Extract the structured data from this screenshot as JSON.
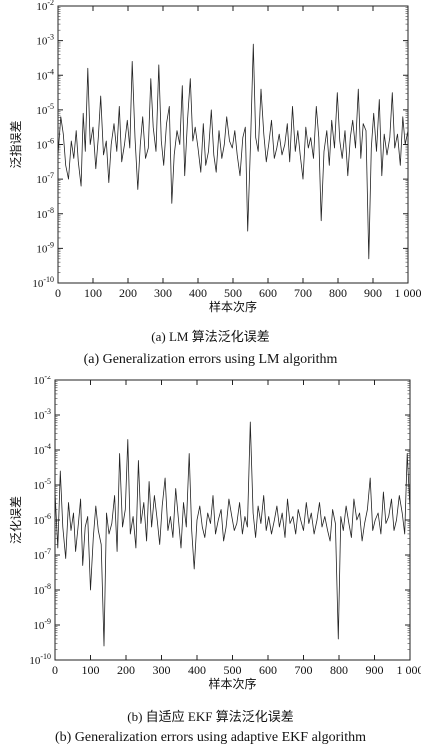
{
  "chart_data": [
    {
      "type": "line",
      "panel": "a",
      "xlabel": "样本次序",
      "ylabel": "泛指误差",
      "xlim": [
        0,
        1000
      ],
      "ylim_log10": [
        -10,
        -2
      ],
      "y_scale": "log",
      "x_ticks": [
        "0",
        "100",
        "200",
        "300",
        "400",
        "500",
        "600",
        "700",
        "800",
        "900",
        "1 000"
      ],
      "y_ticks": [
        {
          "base": "10",
          "exp": "-2"
        },
        {
          "base": "10",
          "exp": "-3"
        },
        {
          "base": "10",
          "exp": "-4"
        },
        {
          "base": "10",
          "exp": "-5"
        },
        {
          "base": "10",
          "exp": "-6"
        },
        {
          "base": "10",
          "exp": "-7"
        },
        {
          "base": "10",
          "exp": "-8"
        },
        {
          "base": "10",
          "exp": "-9"
        },
        {
          "base": "10",
          "exp": "-10"
        }
      ],
      "grid": false,
      "series": [
        {
          "color": "#222222",
          "x": [
            0,
            8,
            15,
            22,
            30,
            38,
            45,
            52,
            58,
            66,
            72,
            78,
            85,
            92,
            100,
            108,
            115,
            122,
            130,
            138,
            145,
            152,
            160,
            168,
            175,
            182,
            190,
            198,
            205,
            212,
            220,
            228,
            235,
            242,
            250,
            258,
            265,
            272,
            280,
            288,
            295,
            302,
            310,
            318,
            325,
            332,
            340,
            348,
            355,
            362,
            370,
            378,
            385,
            392,
            400,
            408,
            415,
            422,
            430,
            438,
            445,
            452,
            460,
            468,
            475,
            482,
            490,
            498,
            505,
            512,
            520,
            528,
            535,
            542,
            550,
            558,
            565,
            572,
            580,
            588,
            595,
            602,
            610,
            618,
            625,
            632,
            640,
            648,
            655,
            662,
            670,
            678,
            685,
            692,
            700,
            708,
            715,
            722,
            730,
            738,
            745,
            752,
            760,
            768,
            775,
            782,
            790,
            798,
            805,
            812,
            820,
            828,
            835,
            842,
            850,
            858,
            865,
            872,
            880,
            888,
            895,
            902,
            910,
            918,
            925,
            932,
            940,
            948,
            955,
            962,
            970,
            978,
            985,
            992,
            1000
          ],
          "y_log10": [
            -6.3,
            -5.2,
            -5.7,
            -6.6,
            -7.0,
            -5.9,
            -6.4,
            -5.6,
            -6.5,
            -7.2,
            -5.1,
            -6.2,
            -3.8,
            -6.0,
            -5.5,
            -6.7,
            -5.8,
            -4.6,
            -6.3,
            -5.9,
            -7.1,
            -6.0,
            -5.4,
            -6.2,
            -4.9,
            -6.5,
            -6.0,
            -5.3,
            -6.1,
            -3.6,
            -5.8,
            -7.3,
            -6.0,
            -5.2,
            -6.4,
            -6.1,
            -4.1,
            -5.5,
            -6.2,
            -3.7,
            -5.9,
            -6.6,
            -5.4,
            -4.9,
            -7.7,
            -6.3,
            -5.6,
            -6.0,
            -4.3,
            -6.9,
            -5.3,
            -4.1,
            -5.9,
            -5.5,
            -6.1,
            -6.8,
            -5.4,
            -6.6,
            -6.2,
            -5.0,
            -6.3,
            -6.8,
            -5.6,
            -6.4,
            -6.0,
            -5.2,
            -5.9,
            -6.1,
            -5.6,
            -6.3,
            -6.9,
            -5.8,
            -5.5,
            -8.5,
            -6.0,
            -3.1,
            -5.8,
            -6.2,
            -4.4,
            -5.7,
            -6.5,
            -6.0,
            -5.3,
            -6.4,
            -6.1,
            -5.7,
            -6.3,
            -6.0,
            -5.4,
            -6.5,
            -4.9,
            -6.2,
            -5.6,
            -6.3,
            -7.0,
            -5.5,
            -6.1,
            -5.8,
            -6.4,
            -4.9,
            -5.8,
            -8.2,
            -6.2,
            -5.6,
            -6.6,
            -5.3,
            -6.1,
            -4.5,
            -5.9,
            -6.4,
            -5.6,
            -6.9,
            -5.8,
            -5.3,
            -6.1,
            -4.4,
            -6.4,
            -5.4,
            -5.6,
            -9.3,
            -6.1,
            -5.1,
            -6.2,
            -4.7,
            -6.9,
            -5.7,
            -6.3,
            -5.8,
            -4.5,
            -6.1,
            -5.7,
            -6.6,
            -5.2,
            -6.0,
            -5.6
          ]
        }
      ]
    },
    {
      "type": "line",
      "panel": "b",
      "xlabel": "样本次序",
      "ylabel": "泛化误差",
      "xlim": [
        0,
        1000
      ],
      "ylim_log10": [
        -10,
        -2
      ],
      "y_scale": "log",
      "x_ticks": [
        "0",
        "100",
        "200",
        "300",
        "400",
        "500",
        "600",
        "700",
        "800",
        "900",
        "1 000"
      ],
      "y_ticks": [
        {
          "base": "10",
          "exp": "-2"
        },
        {
          "base": "10",
          "exp": "-3"
        },
        {
          "base": "10",
          "exp": "-4"
        },
        {
          "base": "10",
          "exp": "-5"
        },
        {
          "base": "10",
          "exp": "-6"
        },
        {
          "base": "10",
          "exp": "-7"
        },
        {
          "base": "10",
          "exp": "-8"
        },
        {
          "base": "10",
          "exp": "-9"
        },
        {
          "base": "10",
          "exp": "-10"
        }
      ],
      "grid": false,
      "series": [
        {
          "color": "#222222",
          "x": [
            0,
            8,
            15,
            22,
            30,
            38,
            45,
            52,
            58,
            66,
            72,
            78,
            85,
            92,
            100,
            108,
            115,
            122,
            130,
            138,
            145,
            152,
            160,
            168,
            175,
            182,
            190,
            198,
            205,
            212,
            220,
            228,
            235,
            242,
            250,
            258,
            265,
            272,
            280,
            288,
            295,
            302,
            310,
            318,
            325,
            332,
            340,
            348,
            355,
            362,
            370,
            378,
            385,
            392,
            400,
            408,
            415,
            422,
            430,
            438,
            445,
            452,
            460,
            468,
            475,
            482,
            490,
            498,
            505,
            512,
            520,
            528,
            535,
            542,
            550,
            558,
            565,
            572,
            580,
            588,
            595,
            602,
            610,
            618,
            625,
            632,
            640,
            648,
            655,
            662,
            670,
            678,
            685,
            692,
            700,
            708,
            715,
            722,
            730,
            738,
            745,
            752,
            760,
            768,
            775,
            782,
            790,
            798,
            805,
            812,
            820,
            828,
            835,
            842,
            850,
            858,
            865,
            872,
            880,
            888,
            895,
            902,
            910,
            918,
            925,
            932,
            940,
            948,
            955,
            962,
            970,
            978,
            985,
            992,
            1000
          ],
          "y_log10": [
            -5.2,
            -6.8,
            -4.6,
            -6.2,
            -7.1,
            -5.5,
            -6.3,
            -5.8,
            -6.9,
            -6.1,
            -5.4,
            -7.3,
            -6.2,
            -5.9,
            -8.0,
            -6.5,
            -5.6,
            -6.3,
            -6.7,
            -9.6,
            -5.8,
            -6.4,
            -6.1,
            -5.3,
            -6.9,
            -4.1,
            -6.2,
            -5.7,
            -3.7,
            -6.4,
            -5.9,
            -6.8,
            -4.3,
            -6.1,
            -5.5,
            -6.6,
            -4.9,
            -6.2,
            -5.3,
            -6.0,
            -6.7,
            -5.6,
            -4.8,
            -6.3,
            -5.9,
            -6.5,
            -5.1,
            -6.0,
            -6.8,
            -5.5,
            -6.2,
            -4.1,
            -6.3,
            -7.4,
            -6.0,
            -5.6,
            -6.2,
            -6.5,
            -5.8,
            -6.1,
            -5.3,
            -6.4,
            -6.0,
            -5.7,
            -6.6,
            -6.2,
            -5.4,
            -5.9,
            -6.3,
            -6.1,
            -5.5,
            -6.4,
            -5.9,
            -6.2,
            -3.2,
            -5.8,
            -6.5,
            -5.6,
            -6.1,
            -5.3,
            -6.3,
            -5.9,
            -6.4,
            -6.0,
            -5.6,
            -6.2,
            -5.8,
            -6.5,
            -5.4,
            -6.1,
            -5.9,
            -6.4,
            -5.7,
            -6.0,
            -6.3,
            -5.5,
            -6.1,
            -5.8,
            -6.4,
            -6.0,
            -5.5,
            -6.2,
            -5.9,
            -6.3,
            -6.6,
            -5.7,
            -6.1,
            -9.4,
            -5.9,
            -6.3,
            -5.6,
            -6.1,
            -6.5,
            -5.4,
            -6.0,
            -5.8,
            -6.6,
            -6.1,
            -5.7,
            -4.8,
            -6.3,
            -6.0,
            -5.8,
            -6.4,
            -5.2,
            -6.1,
            -5.9,
            -5.4,
            -6.3,
            -6.0,
            -5.3,
            -5.8,
            -6.4,
            -4.1,
            -5.7
          ]
        }
      ]
    }
  ],
  "captions": {
    "a_cn": "(a) LM 算法泛化误差",
    "a_en": "(a) Generalization errors using LM algorithm",
    "b_cn": "(b) 自适应 EKF 算法泛化误差",
    "b_en": "(b) Generalization errors using adaptive EKF algorithm"
  }
}
